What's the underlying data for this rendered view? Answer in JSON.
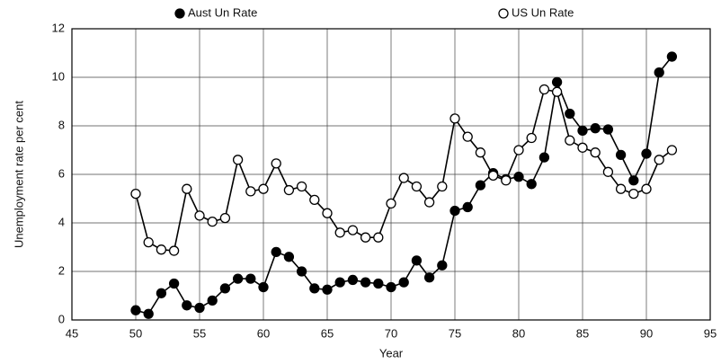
{
  "chart_data": {
    "type": "line",
    "x_label": "Year",
    "y_label": "Unemployment rate per cent",
    "x": [
      50,
      51,
      52,
      53,
      54,
      55,
      56,
      57,
      58,
      59,
      60,
      61,
      62,
      63,
      64,
      65,
      66,
      67,
      68,
      69,
      70,
      71,
      72,
      73,
      74,
      75,
      76,
      77,
      78,
      79,
      80,
      81,
      82,
      83,
      84,
      85,
      86,
      87,
      88,
      89,
      90,
      91,
      92
    ],
    "series": [
      {
        "name": "Aust Un Rate",
        "color": "#000000",
        "marker_fill": "#000000",
        "values": [
          0.4,
          0.25,
          1.1,
          1.5,
          0.6,
          0.5,
          0.8,
          1.3,
          1.7,
          1.7,
          1.35,
          2.8,
          2.6,
          2.0,
          1.3,
          1.25,
          1.55,
          1.65,
          1.55,
          1.5,
          1.35,
          1.55,
          2.45,
          1.75,
          2.25,
          4.5,
          4.65,
          5.55,
          6.05,
          5.8,
          5.9,
          5.6,
          6.7,
          9.8,
          8.5,
          7.8,
          7.9,
          7.85,
          6.8,
          5.75,
          6.85,
          10.2,
          10.85
        ]
      },
      {
        "name": "US Un Rate",
        "color": "#000000",
        "marker_fill": "#ffffff",
        "values": [
          5.2,
          3.2,
          2.9,
          2.85,
          5.4,
          4.3,
          4.05,
          4.2,
          6.6,
          5.3,
          5.4,
          6.45,
          5.35,
          5.5,
          4.95,
          4.4,
          3.6,
          3.7,
          3.4,
          3.4,
          4.8,
          5.85,
          5.5,
          4.85,
          5.5,
          8.3,
          7.55,
          6.9,
          5.95,
          5.75,
          7.0,
          7.5,
          9.5,
          9.4,
          7.4,
          7.1,
          6.9,
          6.1,
          5.4,
          5.2,
          5.4,
          6.6,
          7.0
        ]
      }
    ],
    "xlim": [
      45,
      95
    ],
    "xticks": [
      45,
      50,
      55,
      60,
      65,
      70,
      75,
      80,
      85,
      90,
      95
    ],
    "ylim": [
      0,
      12
    ],
    "yticks": [
      0,
      2,
      4,
      6,
      8,
      10,
      12
    ],
    "grid": true
  }
}
